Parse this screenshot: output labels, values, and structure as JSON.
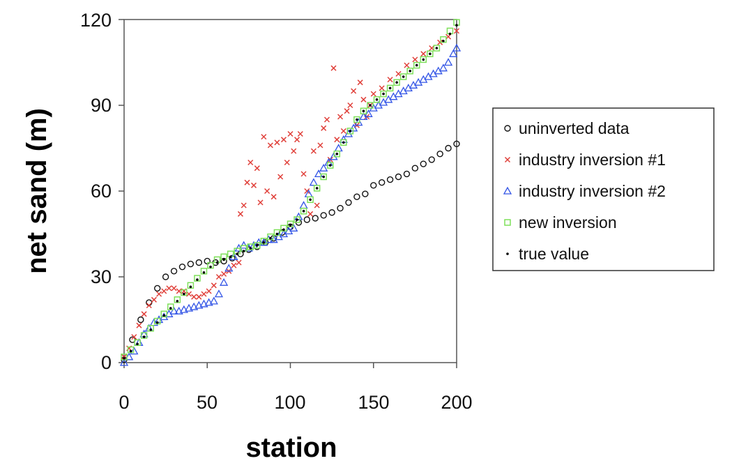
{
  "chart_data": {
    "type": "scatter",
    "title": "",
    "xlabel": "station",
    "ylabel": "net sand (m)",
    "xlim": [
      0,
      200
    ],
    "ylim": [
      0,
      120
    ],
    "x_ticks": [
      "0",
      "50",
      "100",
      "150",
      "200"
    ],
    "y_ticks": [
      "0",
      "30",
      "60",
      "90",
      "120"
    ],
    "grid": false,
    "legend": {
      "placement": "right",
      "items": [
        "uninverted data",
        "industry inversion #1",
        "industry inversion #2",
        "new inversion",
        "true value"
      ]
    },
    "series": [
      {
        "name": "uninverted data",
        "marker": "circle",
        "color": "#111111",
        "x": [
          0,
          5,
          10,
          15,
          20,
          25,
          30,
          35,
          40,
          45,
          50,
          55,
          60,
          65,
          70,
          75,
          80,
          85,
          90,
          95,
          100,
          105,
          110,
          115,
          120,
          125,
          130,
          135,
          140,
          145,
          150,
          155,
          160,
          165,
          170,
          175,
          180,
          185,
          190,
          195,
          200
        ],
        "y": [
          1,
          8,
          15,
          21,
          26,
          30,
          32,
          33.5,
          34.5,
          35,
          35.5,
          35,
          35.5,
          36.5,
          38,
          39.5,
          40.5,
          42,
          43.5,
          45.5,
          47.5,
          49,
          50,
          50.5,
          51.5,
          52.5,
          54,
          56,
          58,
          59,
          62,
          63,
          64,
          65,
          66,
          68,
          69.5,
          71,
          73,
          75,
          76.5
        ]
      },
      {
        "name": "industry inversion #1",
        "marker": "x",
        "color": "#e0403a",
        "x": [
          0,
          3,
          6,
          9,
          12,
          15,
          18,
          21,
          24,
          27,
          30,
          33,
          36,
          39,
          42,
          45,
          48,
          51,
          54,
          57,
          60,
          63,
          66,
          69,
          70,
          72,
          74,
          76,
          78,
          80,
          82,
          84,
          86,
          88,
          90,
          92,
          94,
          96,
          98,
          100,
          102,
          104,
          106,
          108,
          110,
          112,
          114,
          116,
          118,
          120,
          122,
          124,
          126,
          128,
          130,
          132,
          134,
          136,
          138,
          140,
          142,
          144,
          146,
          148,
          150,
          155,
          160,
          165,
          170,
          175,
          180,
          185,
          190,
          195,
          200
        ],
        "y": [
          2,
          5,
          9,
          13,
          17,
          20,
          22,
          24,
          25,
          26,
          26,
          25,
          25,
          24,
          23,
          23,
          24,
          25,
          27,
          30,
          31,
          32,
          34,
          35,
          52,
          55,
          63,
          70,
          62,
          68,
          56,
          79,
          60,
          76,
          58,
          77,
          65,
          78,
          70,
          80,
          74,
          78,
          80,
          66,
          60,
          52,
          74,
          55,
          76,
          82,
          85,
          71,
          103,
          78,
          86,
          81,
          88,
          90,
          95,
          83,
          98,
          92,
          86,
          90,
          94,
          96,
          99,
          101,
          104,
          106,
          108,
          110,
          112,
          114,
          116
        ]
      },
      {
        "name": "industry inversion #2",
        "marker": "triangle",
        "color": "#3355e6",
        "x": [
          0,
          3,
          6,
          9,
          12,
          15,
          18,
          21,
          24,
          27,
          30,
          33,
          36,
          39,
          42,
          45,
          48,
          51,
          54,
          57,
          60,
          63,
          66,
          69,
          72,
          75,
          78,
          81,
          84,
          87,
          90,
          93,
          96,
          99,
          102,
          105,
          108,
          111,
          114,
          117,
          120,
          123,
          126,
          129,
          132,
          135,
          138,
          141,
          144,
          147,
          150,
          153,
          156,
          159,
          162,
          165,
          168,
          171,
          174,
          177,
          180,
          183,
          186,
          189,
          192,
          195,
          198,
          200
        ],
        "y": [
          0,
          2,
          4,
          7,
          10,
          12,
          14,
          15,
          16,
          17,
          18,
          18,
          18.5,
          19,
          19.5,
          20,
          20.5,
          21,
          21.5,
          24,
          28,
          33,
          37,
          40,
          41,
          40,
          41,
          42,
          42,
          43,
          43,
          44,
          45,
          46,
          47,
          51,
          55,
          59,
          63,
          66,
          68,
          70,
          72,
          75,
          78,
          80,
          82,
          84,
          86,
          87,
          89,
          90,
          91,
          92,
          93,
          94,
          95,
          96,
          97,
          98,
          99,
          100,
          101,
          102,
          103,
          105,
          108,
          110
        ]
      },
      {
        "name": "new inversion",
        "marker": "square",
        "color": "#7ee05a",
        "x": [
          0,
          4,
          8,
          12,
          16,
          20,
          24,
          28,
          32,
          36,
          40,
          44,
          48,
          52,
          56,
          60,
          64,
          68,
          72,
          76,
          80,
          84,
          88,
          92,
          96,
          100,
          104,
          108,
          112,
          116,
          120,
          124,
          128,
          132,
          136,
          140,
          144,
          148,
          152,
          156,
          160,
          164,
          168,
          172,
          176,
          180,
          184,
          188,
          192,
          196,
          200
        ],
        "y": [
          2,
          4.5,
          7,
          9.5,
          12,
          14.5,
          17,
          19.5,
          22,
          24.5,
          27,
          29.5,
          32,
          34,
          36,
          37,
          38,
          39,
          40,
          40.5,
          41,
          42.5,
          44,
          45.5,
          47,
          48.5,
          50,
          53,
          57,
          61,
          65,
          69,
          73,
          77,
          81,
          85,
          88,
          90,
          92,
          94,
          96,
          98,
          100,
          102,
          104,
          106,
          108,
          110,
          113,
          116,
          119
        ]
      },
      {
        "name": "true value",
        "marker": "dot",
        "color": "#000000",
        "x": [
          0,
          4,
          8,
          12,
          16,
          20,
          24,
          28,
          32,
          36,
          40,
          44,
          48,
          52,
          56,
          60,
          64,
          68,
          72,
          76,
          80,
          84,
          88,
          92,
          96,
          100,
          104,
          108,
          112,
          116,
          120,
          124,
          128,
          132,
          136,
          140,
          144,
          148,
          152,
          156,
          160,
          164,
          168,
          172,
          176,
          180,
          184,
          188,
          192,
          196,
          200
        ],
        "y": [
          1.5,
          4,
          6.5,
          9,
          11.5,
          14,
          16.5,
          19,
          21.5,
          24,
          26.5,
          29,
          31.5,
          33.5,
          35,
          36,
          37,
          38,
          39,
          40,
          41,
          42,
          43.5,
          45,
          46.5,
          48,
          50,
          53,
          57,
          61,
          65,
          69,
          73,
          77,
          81,
          85,
          88,
          90,
          92,
          94,
          96,
          98,
          100,
          102,
          104,
          106,
          108,
          110,
          112.5,
          115,
          118
        ]
      }
    ]
  }
}
